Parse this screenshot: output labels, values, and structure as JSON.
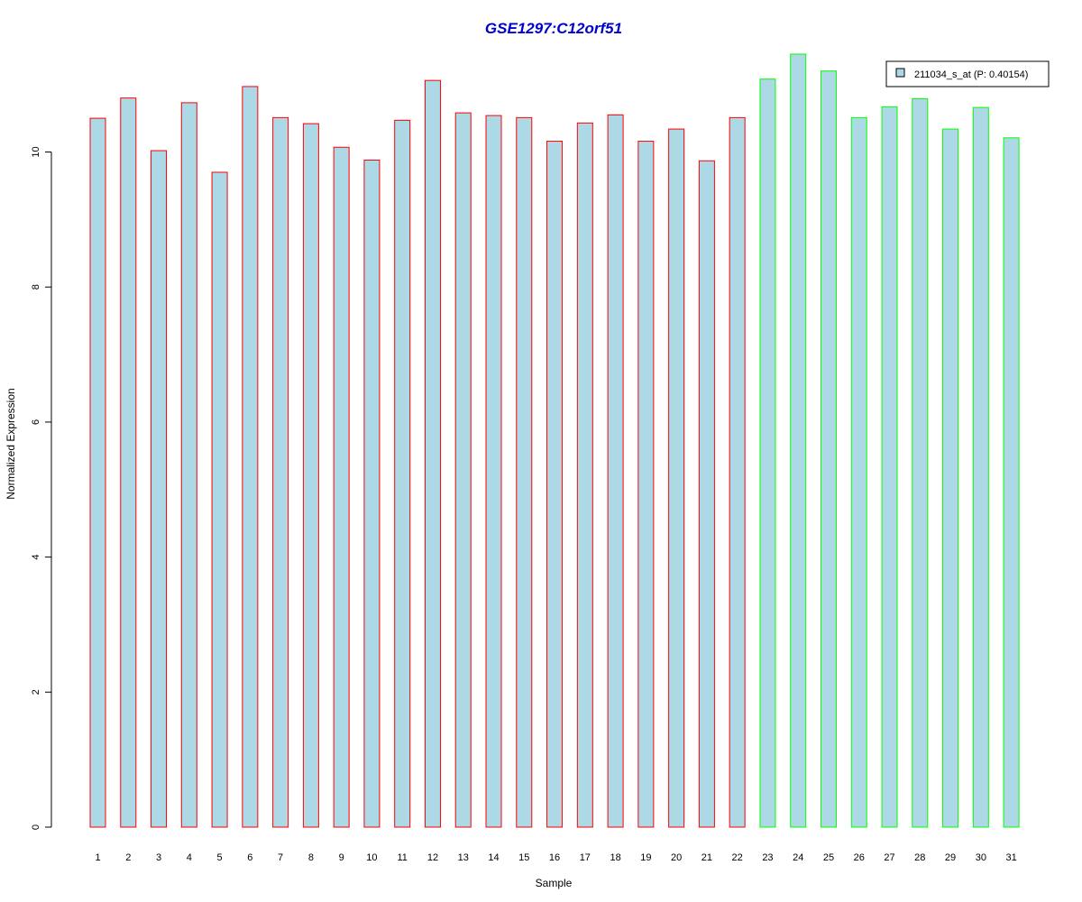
{
  "chart_data": {
    "type": "bar",
    "title": "GSE1297:C12orf51",
    "xlabel": "Sample",
    "ylabel": "Normalized Expression",
    "categories": [
      "1",
      "2",
      "3",
      "4",
      "5",
      "6",
      "7",
      "8",
      "9",
      "10",
      "11",
      "12",
      "13",
      "14",
      "15",
      "16",
      "17",
      "18",
      "19",
      "20",
      "21",
      "22",
      "23",
      "24",
      "25",
      "26",
      "27",
      "28",
      "29",
      "30",
      "31"
    ],
    "values": [
      10.5,
      10.8,
      10.02,
      10.73,
      9.7,
      10.97,
      10.51,
      10.42,
      10.07,
      9.88,
      10.47,
      11.06,
      10.58,
      10.54,
      10.51,
      10.16,
      10.43,
      10.55,
      10.16,
      10.34,
      9.87,
      10.51,
      11.08,
      11.45,
      11.2,
      10.51,
      10.67,
      10.79,
      10.34,
      10.66,
      10.21
    ],
    "groups": [
      1,
      1,
      1,
      1,
      1,
      1,
      1,
      1,
      1,
      1,
      1,
      1,
      1,
      1,
      1,
      1,
      1,
      1,
      1,
      1,
      1,
      1,
      2,
      2,
      2,
      2,
      2,
      2,
      2,
      2,
      2
    ],
    "group_border_colors": {
      "1": "#ff0000",
      "2": "#00ff00"
    },
    "bar_fill": "#add8e6",
    "yticks": [
      0,
      2,
      4,
      6,
      8,
      10
    ],
    "ylim": [
      0,
      11.45
    ],
    "grid": false,
    "legend": {
      "position": "top-right",
      "label": "211034_s_at (P: 0.40154)"
    }
  }
}
